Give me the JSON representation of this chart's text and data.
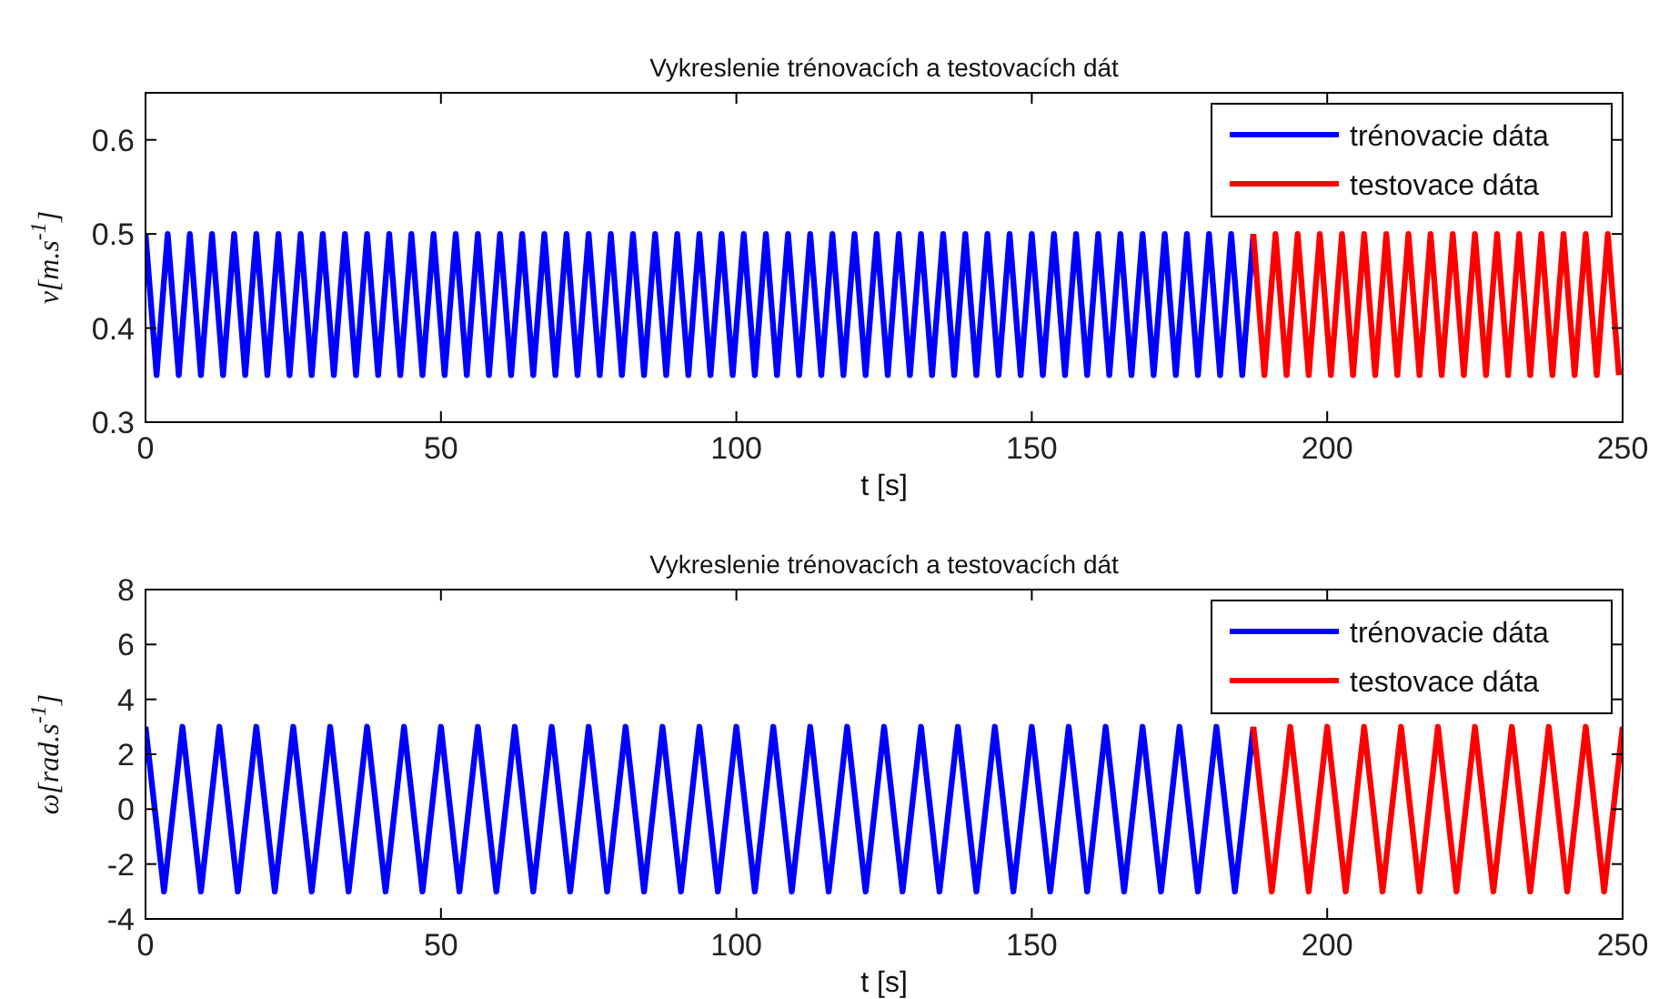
{
  "chart_data": [
    {
      "type": "line",
      "title": "Vykreslenie trénovacích a testovacích dát",
      "xlabel": "t [s]",
      "ylabel": "v[m.s$^{-1}$]",
      "xlim": [
        0,
        250
      ],
      "xticks": [
        0,
        50,
        100,
        150,
        200,
        250
      ],
      "ylim": [
        0.3,
        0.65
      ],
      "yticks": [
        0.3,
        0.4,
        0.5,
        0.6
      ],
      "legend": "top right",
      "grid": false,
      "series": [
        {
          "name": "trénovacie dáta",
          "color": "#0000ff",
          "x": [
            0,
            1.875,
            3.75,
            5.625,
            7.5,
            9.375,
            11.25,
            13.125,
            15,
            16.875,
            18.75,
            20.625,
            22.5,
            24.375,
            26.25,
            28.125,
            30,
            31.875,
            33.75,
            35.625,
            37.5,
            39.375,
            41.25,
            43.125,
            45,
            46.875,
            48.75,
            50.625,
            52.5,
            54.375,
            56.25,
            58.125,
            60,
            61.875,
            63.75,
            65.625,
            67.5,
            69.375,
            71.25,
            73.125,
            75,
            76.875,
            78.75,
            80.625,
            82.5,
            84.375,
            86.25,
            88.125,
            90,
            91.875,
            93.75,
            95.625,
            97.5,
            99.375,
            101.25,
            103.125,
            105,
            106.875,
            108.75,
            110.625,
            112.5,
            114.375,
            116.25,
            118.125,
            120,
            121.875,
            123.75,
            125.625,
            127.5,
            129.375,
            131.25,
            133.125,
            135,
            136.875,
            138.75,
            140.625,
            142.5,
            144.375,
            146.25,
            148.125,
            150,
            151.875,
            153.75,
            155.625,
            157.5,
            159.375,
            161.25,
            163.125,
            165,
            166.875,
            168.75,
            170.625,
            172.5,
            174.375,
            176.25,
            178.125,
            180,
            181.875,
            183.75,
            185.625,
            187.5
          ],
          "values": [
            0.5,
            0.35,
            0.5,
            0.35,
            0.5,
            0.35,
            0.5,
            0.35,
            0.5,
            0.35,
            0.5,
            0.35,
            0.5,
            0.35,
            0.5,
            0.35,
            0.5,
            0.35,
            0.5,
            0.35,
            0.5,
            0.35,
            0.5,
            0.35,
            0.5,
            0.35,
            0.5,
            0.35,
            0.5,
            0.35,
            0.5,
            0.35,
            0.5,
            0.35,
            0.5,
            0.35,
            0.5,
            0.35,
            0.5,
            0.35,
            0.5,
            0.35,
            0.5,
            0.35,
            0.5,
            0.35,
            0.5,
            0.35,
            0.5,
            0.35,
            0.5,
            0.35,
            0.5,
            0.35,
            0.5,
            0.35,
            0.5,
            0.35,
            0.5,
            0.35,
            0.5,
            0.35,
            0.5,
            0.35,
            0.5,
            0.35,
            0.5,
            0.35,
            0.5,
            0.35,
            0.5,
            0.35,
            0.5,
            0.35,
            0.5,
            0.35,
            0.5,
            0.35,
            0.5,
            0.35,
            0.5,
            0.35,
            0.5,
            0.35,
            0.5,
            0.35,
            0.5,
            0.35,
            0.5,
            0.35,
            0.5,
            0.35,
            0.5,
            0.35,
            0.5,
            0.35,
            0.5,
            0.35,
            0.5,
            0.35,
            0.5
          ]
        },
        {
          "name": "testovace dáta",
          "color": "#ff0000",
          "x": [
            187.5,
            189.375,
            191.25,
            193.125,
            195,
            196.875,
            198.75,
            200.625,
            202.5,
            204.375,
            206.25,
            208.125,
            210,
            211.875,
            213.75,
            215.625,
            217.5,
            219.375,
            221.25,
            223.125,
            225,
            226.875,
            228.75,
            230.625,
            232.5,
            234.375,
            236.25,
            238.125,
            240,
            241.875,
            243.75,
            245.625,
            247.5,
            249.375
          ],
          "values": [
            0.5,
            0.35,
            0.5,
            0.35,
            0.5,
            0.35,
            0.5,
            0.35,
            0.5,
            0.35,
            0.5,
            0.35,
            0.5,
            0.35,
            0.5,
            0.35,
            0.5,
            0.35,
            0.5,
            0.35,
            0.5,
            0.35,
            0.5,
            0.35,
            0.5,
            0.35,
            0.5,
            0.35,
            0.5,
            0.35,
            0.5,
            0.35,
            0.5,
            0.35
          ]
        }
      ]
    },
    {
      "type": "line",
      "title": "Vykreslenie trénovacích a testovacích dát",
      "xlabel": "t [s]",
      "ylabel": "ω[rad.s$^{-1}$]",
      "xlim": [
        0,
        250
      ],
      "xticks": [
        0,
        50,
        100,
        150,
        200,
        250
      ],
      "ylim": [
        -4,
        8
      ],
      "yticks": [
        -4,
        -2,
        0,
        2,
        4,
        6,
        8
      ],
      "legend": "top right",
      "grid": false,
      "series": [
        {
          "name": "trénovacie dáta",
          "color": "#0000ff",
          "x": [
            0,
            3.125,
            6.25,
            9.375,
            12.5,
            15.625,
            18.75,
            21.875,
            25,
            28.125,
            31.25,
            34.375,
            37.5,
            40.625,
            43.75,
            46.875,
            50,
            53.125,
            56.25,
            59.375,
            62.5,
            65.625,
            68.75,
            71.875,
            75,
            78.125,
            81.25,
            84.375,
            87.5,
            90.625,
            93.75,
            96.875,
            100,
            103.125,
            106.25,
            109.375,
            112.5,
            115.625,
            118.75,
            121.875,
            125,
            128.125,
            131.25,
            134.375,
            137.5,
            140.625,
            143.75,
            146.875,
            150,
            153.125,
            156.25,
            159.375,
            162.5,
            165.625,
            168.75,
            171.875,
            175,
            178.125,
            181.25,
            184.375,
            187.5
          ],
          "values": [
            3,
            -3,
            3,
            -3,
            3,
            -3,
            3,
            -3,
            3,
            -3,
            3,
            -3,
            3,
            -3,
            3,
            -3,
            3,
            -3,
            3,
            -3,
            3,
            -3,
            3,
            -3,
            3,
            -3,
            3,
            -3,
            3,
            -3,
            3,
            -3,
            3,
            -3,
            3,
            -3,
            3,
            -3,
            3,
            -3,
            3,
            -3,
            3,
            -3,
            3,
            -3,
            3,
            -3,
            3,
            -3,
            3,
            -3,
            3,
            -3,
            3,
            -3,
            3,
            -3,
            3,
            -3,
            3
          ]
        },
        {
          "name": "testovace dáta",
          "color": "#ff0000",
          "x": [
            187.5,
            190.625,
            193.75,
            196.875,
            200,
            203.125,
            206.25,
            209.375,
            212.5,
            215.625,
            218.75,
            221.875,
            225,
            228.125,
            231.25,
            234.375,
            237.5,
            240.625,
            243.75,
            246.875,
            250
          ],
          "values": [
            3,
            -3,
            3,
            -3,
            3,
            -3,
            3,
            -3,
            3,
            -3,
            3,
            -3,
            3,
            -3,
            3,
            -3,
            3,
            -3,
            3,
            -3,
            3
          ]
        }
      ]
    }
  ]
}
